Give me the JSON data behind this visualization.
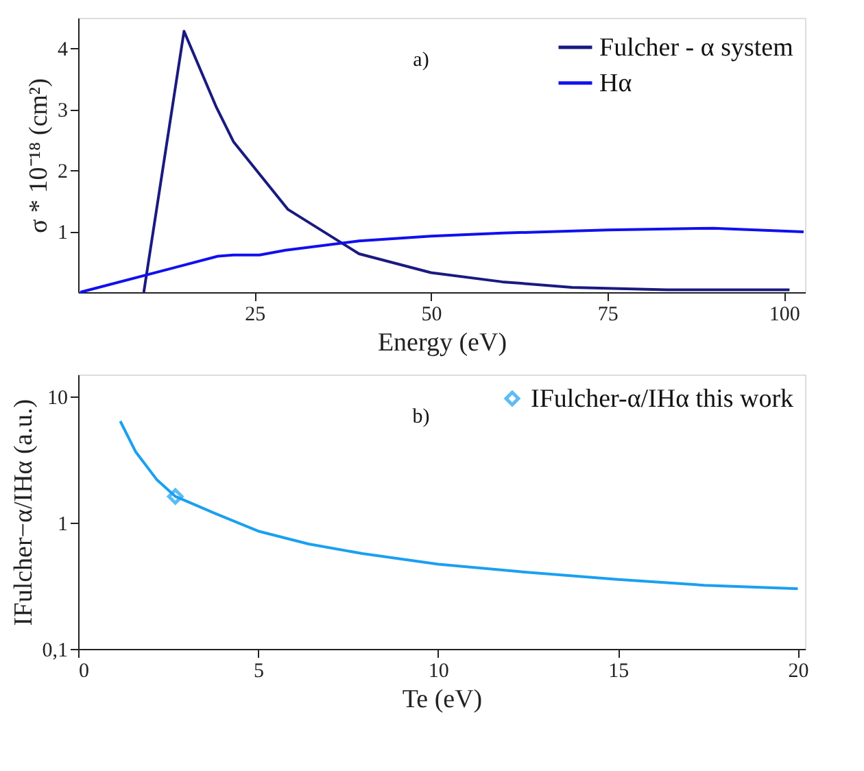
{
  "chart_data": [
    {
      "type": "line",
      "xlabel": "Energy (eV)",
      "ylabel": "σ * 10⁻¹⁸ (cm²)",
      "annotations": [
        "a)"
      ],
      "xlim": [
        0,
        103
      ],
      "xticks": [
        25,
        50,
        75,
        100
      ],
      "ylim": [
        0,
        4.5
      ],
      "yticks": [
        1,
        2,
        3,
        4
      ],
      "grid": false,
      "legend": "top right",
      "marker": "none",
      "line_style": "solid",
      "series": [
        {
          "name": "Fulcher - α system",
          "color": "#1a1a80",
          "x": [
            9.3,
            15.0,
            19.6,
            22.0,
            25.4,
            29.7,
            39.8,
            50,
            60.1,
            70,
            83.4,
            100.8
          ],
          "values": [
            0,
            4.28,
            3.03,
            2.47,
            1.98,
            1.36,
            0.63,
            0.32,
            0.17,
            0.08,
            0.04,
            0.04
          ]
        },
        {
          "name": "Hα",
          "color": "#1010ee",
          "x": [
            0.3,
            19.8,
            22,
            25.7,
            29.4,
            39.8,
            50,
            60.1,
            75,
            90,
            102.8
          ],
          "values": [
            0,
            0.59,
            0.61,
            0.61,
            0.69,
            0.84,
            0.92,
            0.97,
            1.02,
            1.05,
            0.99
          ]
        }
      ]
    },
    {
      "type": "line",
      "xlabel": "Te (eV)",
      "ylabel": "IFulcher−α/IHα (a.u.)",
      "annotations": [
        "b)"
      ],
      "xlim": [
        0,
        20.2
      ],
      "xticks": [
        0,
        5,
        10,
        15,
        20
      ],
      "ylim": [
        0.1,
        15
      ],
      "yticks": [
        {
          "value": 0.1,
          "label": "0,1"
        },
        1,
        10
      ],
      "log": true,
      "grid": false,
      "legend": "top right",
      "line_style": "solid",
      "series": [
        {
          "color": "#1aa0f0",
          "x": [
            1.17,
            1.6,
            2.19,
            2.7,
            3.8,
            5,
            6.4,
            7.9,
            10,
            12.26,
            15,
            17.4,
            20
          ],
          "values": [
            6.4,
            3.65,
            2.19,
            1.62,
            1.19,
            0.86,
            0.68,
            0.57,
            0.47,
            0.41,
            0.355,
            0.32,
            0.3
          ]
        },
        {
          "type": "scatter",
          "name": "IFulcher-α/IHα this work",
          "color": "#1aa0f0",
          "marker": "diamond",
          "x": [
            2.7
          ],
          "values": [
            1.62
          ]
        }
      ]
    }
  ]
}
